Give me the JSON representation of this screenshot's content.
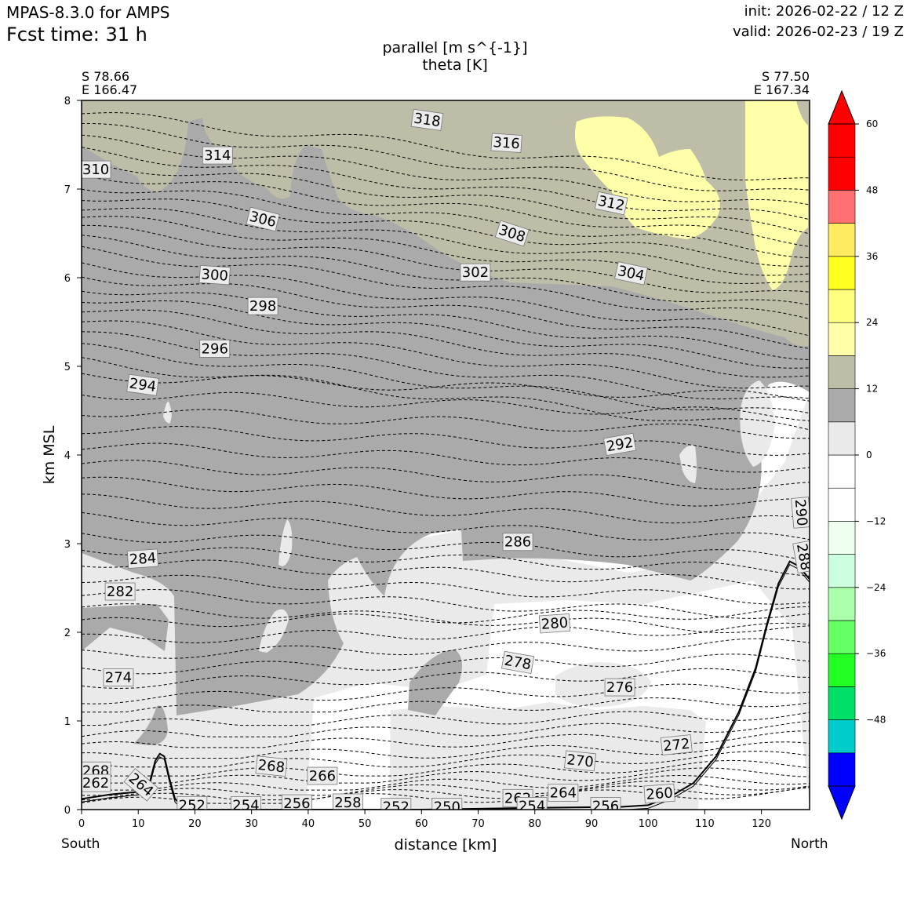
{
  "header": {
    "model": "MPAS-8.3.0 for AMPS",
    "fcst_time": "Fcst time:   31 h",
    "init": "init: 2026-02-22 / 12 Z",
    "valid": "valid: 2026-02-23 / 19 Z"
  },
  "title": {
    "line1": "parallel [m s^{-1}]",
    "line2": "theta [K]"
  },
  "endpoints": {
    "left_lat": "S 78.66",
    "left_lon": "E 166.47",
    "right_lat": "S 77.50",
    "right_lon": "E 167.34",
    "left_dir": "South",
    "right_dir": "North"
  },
  "chart_data": {
    "type": "heatmap",
    "xlabel": "distance [km]",
    "ylabel": "km MSL",
    "xlim": [
      0,
      128.5
    ],
    "ylim": [
      0,
      8
    ],
    "xticks": [
      0,
      10,
      20,
      30,
      40,
      50,
      60,
      70,
      80,
      90,
      100,
      110,
      120
    ],
    "yticks": [
      0,
      1,
      2,
      3,
      4,
      5,
      6,
      7,
      8
    ],
    "colorbar": {
      "levels": [
        -60,
        -54,
        -48,
        -42,
        -36,
        -30,
        -24,
        -18,
        -12,
        -6,
        0,
        6,
        12,
        18,
        24,
        30,
        36,
        42,
        48,
        54,
        60
      ],
      "tick_labels": [
        "60",
        "48",
        "36",
        "24",
        "12",
        "0",
        "−12",
        "−24",
        "−36",
        "−48"
      ],
      "tick_values": [
        60,
        48,
        36,
        24,
        12,
        0,
        -12,
        -24,
        -36,
        -48
      ],
      "colors": [
        "#0000ff",
        "#00cccc",
        "#00e066",
        "#22ff22",
        "#66ff66",
        "#aaffaa",
        "#ccffdd",
        "#eefff0",
        "#ffffff",
        "#ffffff",
        "#eaeaea",
        "#aaaaaa",
        "#bebea8",
        "#ffffaa",
        "#ffff80",
        "#ffff22",
        "#ffea60",
        "#ff7070",
        "#ff0000",
        "#ff0000"
      ],
      "extend": "both"
    },
    "wind_regions": [
      {
        "name": "12-18",
        "color": "#aaaaaa"
      },
      {
        "name": "18-24",
        "color": "#bebea8"
      },
      {
        "name": "24-30",
        "color": "#ffffaa"
      },
      {
        "name": "6-12",
        "color": "#eaeaea"
      }
    ],
    "theta_labels": [
      {
        "text": "318",
        "x": 61,
        "y": 7.78,
        "rot": 8
      },
      {
        "text": "316",
        "x": 75,
        "y": 7.52,
        "rot": 4
      },
      {
        "text": "314",
        "x": 24,
        "y": 7.38,
        "rot": 0
      },
      {
        "text": "310",
        "x": 2.5,
        "y": 7.22,
        "rot": 0
      },
      {
        "text": "312",
        "x": 93.5,
        "y": 6.84,
        "rot": 12
      },
      {
        "text": "306",
        "x": 32,
        "y": 6.66,
        "rot": 14
      },
      {
        "text": "308",
        "x": 76,
        "y": 6.5,
        "rot": 18
      },
      {
        "text": "300",
        "x": 23.5,
        "y": 6.03,
        "rot": 4
      },
      {
        "text": "302",
        "x": 69.5,
        "y": 6.06,
        "rot": 0
      },
      {
        "text": "304",
        "x": 97,
        "y": 6.05,
        "rot": 12
      },
      {
        "text": "298",
        "x": 32,
        "y": 5.68,
        "rot": 0
      },
      {
        "text": "296",
        "x": 23.5,
        "y": 5.2,
        "rot": 0
      },
      {
        "text": "294",
        "x": 10.8,
        "y": 4.79,
        "rot": 8
      },
      {
        "text": "292",
        "x": 95,
        "y": 4.12,
        "rot": -10
      },
      {
        "text": "290",
        "x": 127,
        "y": 3.35,
        "rot": 85
      },
      {
        "text": "286",
        "x": 77,
        "y": 3.02,
        "rot": 0
      },
      {
        "text": "288",
        "x": 127.5,
        "y": 2.85,
        "rot": 80
      },
      {
        "text": "284",
        "x": 10.8,
        "y": 2.83,
        "rot": -4
      },
      {
        "text": "282",
        "x": 6.8,
        "y": 2.46,
        "rot": 0
      },
      {
        "text": "280",
        "x": 83.5,
        "y": 2.1,
        "rot": -4
      },
      {
        "text": "278",
        "x": 77,
        "y": 1.66,
        "rot": 10
      },
      {
        "text": "274",
        "x": 6.5,
        "y": 1.49,
        "rot": 0
      },
      {
        "text": "276",
        "x": 95,
        "y": 1.38,
        "rot": 0
      },
      {
        "text": "272",
        "x": 105,
        "y": 0.73,
        "rot": -6
      },
      {
        "text": "270",
        "x": 88,
        "y": 0.55,
        "rot": 6
      },
      {
        "text": "268",
        "x": 33.5,
        "y": 0.49,
        "rot": 6
      },
      {
        "text": "266",
        "x": 42.5,
        "y": 0.38,
        "rot": 0
      },
      {
        "text": "268",
        "x": 2.5,
        "y": 0.44,
        "rot": 0
      },
      {
        "text": "262",
        "x": 2.5,
        "y": 0.3,
        "rot": 0
      },
      {
        "text": "264",
        "x": 10.5,
        "y": 0.28,
        "rot": 40
      },
      {
        "text": "264",
        "x": 85,
        "y": 0.19,
        "rot": 0
      },
      {
        "text": "262",
        "x": 77,
        "y": 0.13,
        "rot": 0
      },
      {
        "text": "260",
        "x": 102,
        "y": 0.18,
        "rot": -4
      },
      {
        "text": "252",
        "x": 19.5,
        "y": 0.05,
        "rot": 0
      },
      {
        "text": "254",
        "x": 29,
        "y": 0.05,
        "rot": 0
      },
      {
        "text": "256",
        "x": 38,
        "y": 0.07,
        "rot": 0
      },
      {
        "text": "258",
        "x": 47,
        "y": 0.08,
        "rot": 0
      },
      {
        "text": "252",
        "x": 55.5,
        "y": 0.03,
        "rot": 0
      },
      {
        "text": "250",
        "x": 64.5,
        "y": 0.03,
        "rot": 0
      },
      {
        "text": "254",
        "x": 79.5,
        "y": 0.04,
        "rot": 0
      },
      {
        "text": "256",
        "x": 92.5,
        "y": 0.04,
        "rot": 0
      }
    ],
    "terrain": [
      [
        0,
        0.12
      ],
      [
        5,
        0.17
      ],
      [
        10,
        0.2
      ],
      [
        12,
        0.3
      ],
      [
        13,
        0.55
      ],
      [
        13.8,
        0.63
      ],
      [
        14.6,
        0.6
      ],
      [
        15.5,
        0.35
      ],
      [
        16.5,
        0.12
      ],
      [
        18,
        0.02
      ],
      [
        20,
        0.0
      ],
      [
        40,
        0.0
      ],
      [
        60,
        0.0
      ],
      [
        80,
        0.02
      ],
      [
        95,
        0.03
      ],
      [
        100,
        0.05
      ],
      [
        104,
        0.15
      ],
      [
        108,
        0.3
      ],
      [
        112,
        0.6
      ],
      [
        116,
        1.1
      ],
      [
        119,
        1.6
      ],
      [
        121,
        2.1
      ],
      [
        123,
        2.55
      ],
      [
        125,
        2.8
      ],
      [
        126.5,
        2.75
      ],
      [
        128.5,
        2.6
      ]
    ]
  }
}
